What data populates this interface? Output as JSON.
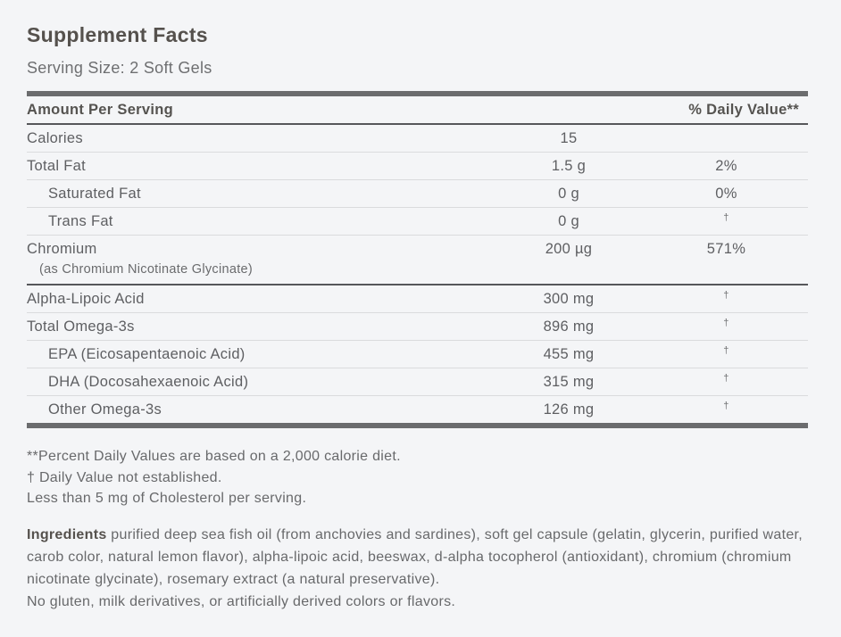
{
  "label": {
    "title": "Supplement Facts",
    "serving_size": "Serving Size: 2 Soft Gels",
    "header": {
      "amount": "Amount Per Serving",
      "daily_value": "% Daily Value**"
    },
    "rows": [
      {
        "name": "Calories",
        "amount": "15",
        "dv": "",
        "indent": false,
        "strong_divider": false
      },
      {
        "name": "Total Fat",
        "amount": "1.5 g",
        "dv": "2%",
        "indent": false,
        "strong_divider": false
      },
      {
        "name": "Saturated Fat",
        "amount": "0 g",
        "dv": "0%",
        "indent": true,
        "strong_divider": false
      },
      {
        "name": "Trans Fat",
        "amount": "0 g",
        "dv": "†",
        "indent": true,
        "strong_divider": false
      },
      {
        "name": "Chromium",
        "sub": "(as Chromium Nicotinate Glycinate)",
        "amount": "200 µg",
        "dv": "571%",
        "indent": false,
        "strong_divider": true
      },
      {
        "name": "Alpha-Lipoic Acid",
        "amount": "300 mg",
        "dv": "†",
        "indent": false,
        "strong_divider": false
      },
      {
        "name": "Total Omega-3s",
        "amount": "896 mg",
        "dv": "†",
        "indent": false,
        "strong_divider": false
      },
      {
        "name": "EPA (Eicosapentaenoic Acid)",
        "amount": "455 mg",
        "dv": "†",
        "indent": true,
        "strong_divider": false
      },
      {
        "name": "DHA (Docosahexaenoic Acid)",
        "amount": "315 mg",
        "dv": "†",
        "indent": true,
        "strong_divider": false
      },
      {
        "name": "Other Omega-3s",
        "amount": "126 mg",
        "dv": "†",
        "indent": true,
        "strong_divider": false
      }
    ],
    "footnotes": [
      "**Percent Daily Values are based on a 2,000 calorie diet.",
      "† Daily Value not established.",
      "Less than 5 mg of Cholesterol per serving."
    ],
    "ingredients_label": "Ingredients",
    "ingredients_text": " purified deep sea fish oil (from anchovies and sardines), soft gel capsule (gelatin, glycerin, purified water, carob color, natural lemon flavor), alpha-lipoic acid, beeswax, d-alpha tocopherol (antioxidant), chromium (chromium nicotinate glycinate), rosemary extract (a natural preservative).",
    "allergen_text": "No gluten, milk derivatives, or artificially derived colors or flavors.",
    "colors": {
      "background": "#f4f5f7",
      "title": "#55514d",
      "body_text": "#5e5f62",
      "thick_bar": "#6b6c6e",
      "dark_rule": "#56575a",
      "light_divider": "#dadbdd"
    }
  }
}
